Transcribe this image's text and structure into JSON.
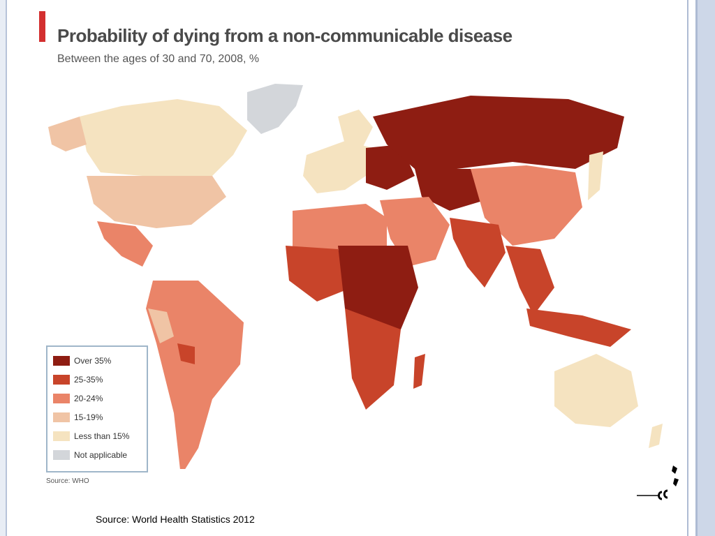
{
  "title": "Probability of dying from a non-communicable disease",
  "subtitle": "Between the ages of 30 and 70, 2008, %",
  "source_inner": "Source: WHO",
  "caption": "Source: World Health Statistics 2012",
  "legend": [
    {
      "label": "Over 35%",
      "color": "#8e1d12"
    },
    {
      "label": "25-35%",
      "color": "#c8442a"
    },
    {
      "label": "20-24%",
      "color": "#ea8468"
    },
    {
      "label": "15-19%",
      "color": "#f0c4a5"
    },
    {
      "label": "Less than 15%",
      "color": "#f5e3c0"
    },
    {
      "label": "Not applicable",
      "color": "#d3d6da"
    }
  ],
  "colors": {
    "title_accent": "#d32f2f",
    "frame": "#aebbd3"
  }
}
